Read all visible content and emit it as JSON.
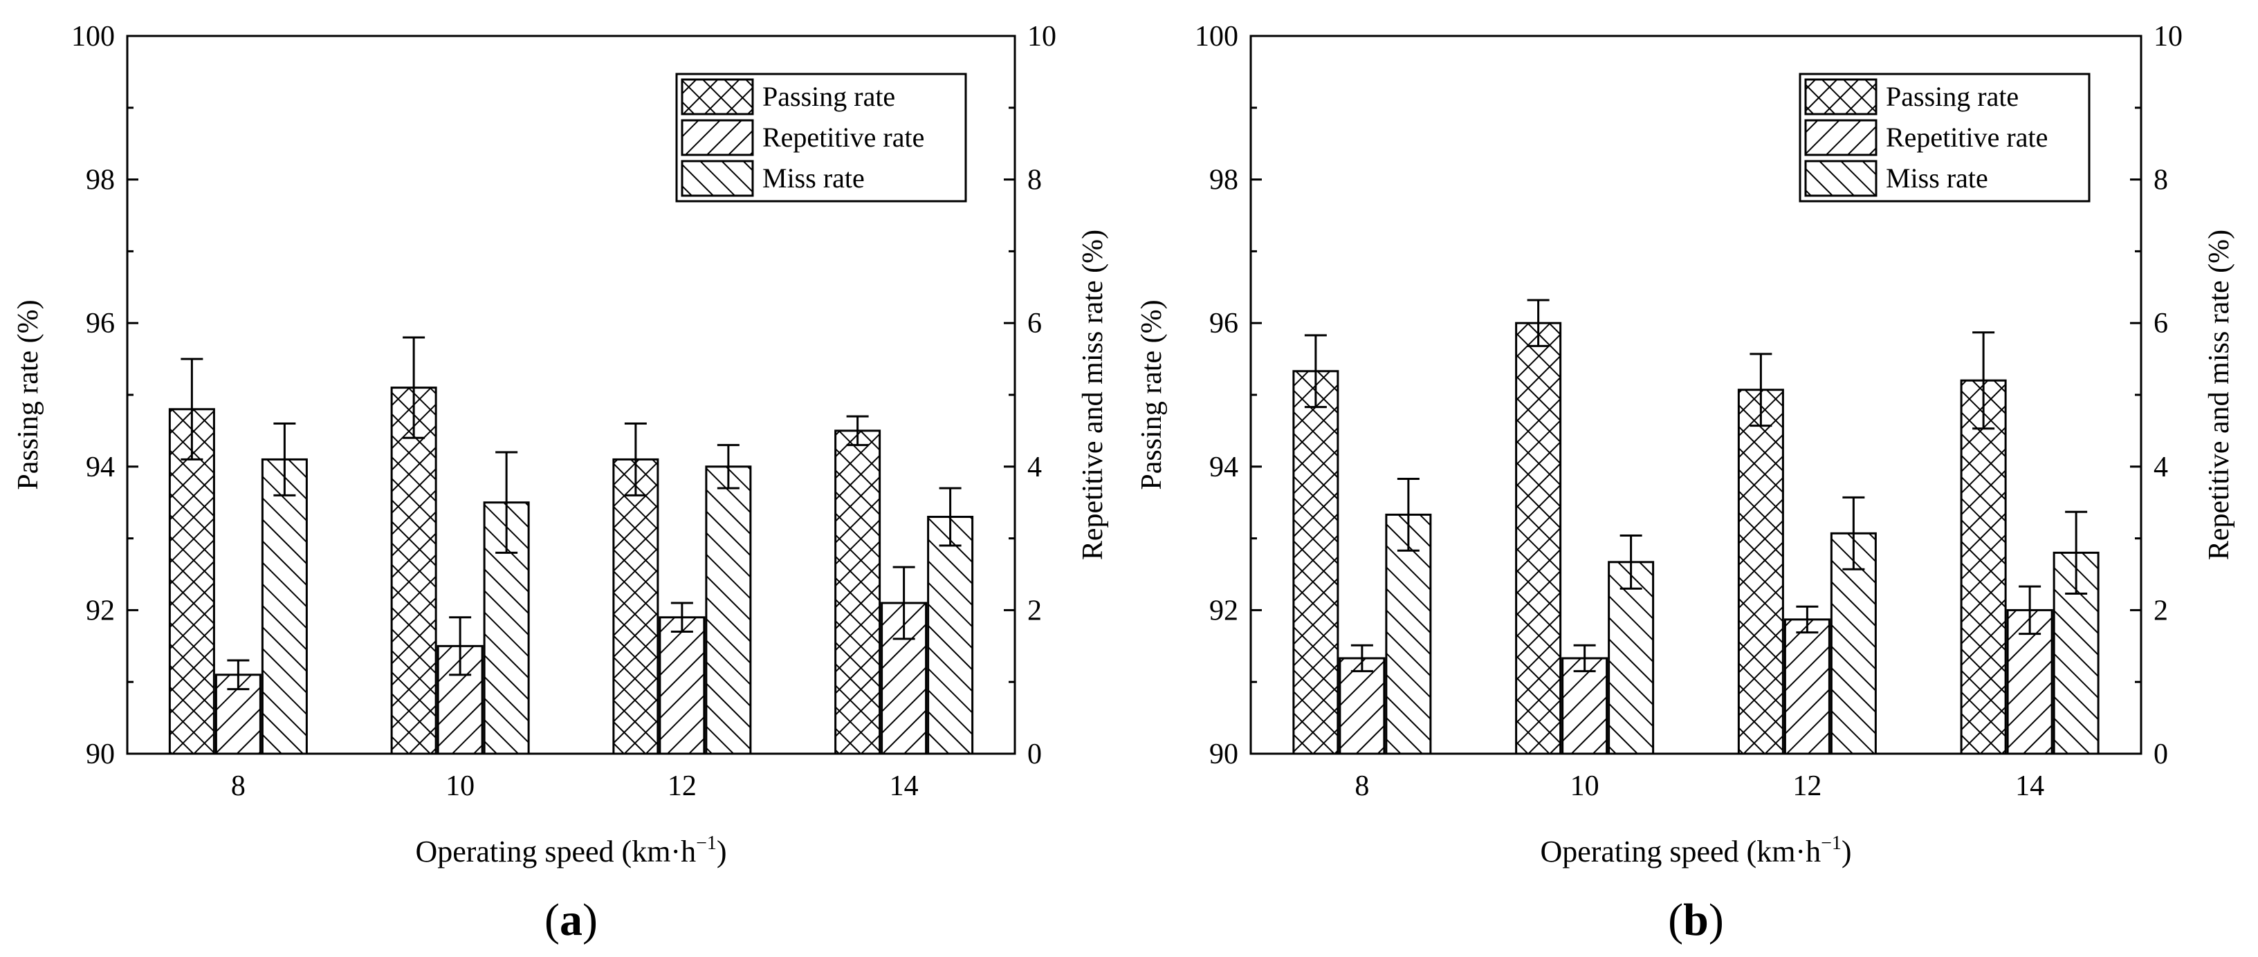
{
  "chart_data": [
    {
      "type": "bar",
      "panel_label": "a",
      "categories": [
        "8",
        "10",
        "12",
        "14"
      ],
      "xlabel": "Operating speed (km·h",
      "xlabel_sup": "−1",
      "xlabel_tail": ")",
      "ylabel_left": "Passing rate (%)",
      "ylabel_right": "Repetitive and miss rate (%)",
      "ylim_left": [
        90,
        100
      ],
      "ylim_right": [
        0,
        10
      ],
      "yticks_left": [
        "90",
        "92",
        "94",
        "96",
        "98",
        "100"
      ],
      "yticks_right": [
        "0",
        "2",
        "4",
        "6",
        "8",
        "10"
      ],
      "legend_position": "top-right",
      "series": [
        {
          "name": "Passing rate",
          "axis": "left",
          "pattern": "crosshatch",
          "values": [
            94.8,
            95.1,
            94.1,
            94.5
          ],
          "errors": [
            0.7,
            0.7,
            0.5,
            0.2
          ]
        },
        {
          "name": "Repetitive rate",
          "axis": "right",
          "pattern": "forward-diagonal",
          "values": [
            1.1,
            1.5,
            1.9,
            2.1
          ],
          "errors": [
            0.2,
            0.4,
            0.2,
            0.5
          ]
        },
        {
          "name": "Miss rate",
          "axis": "right",
          "pattern": "back-diagonal",
          "values": [
            4.1,
            3.5,
            4.0,
            3.3
          ],
          "errors": [
            0.5,
            0.7,
            0.3,
            0.4
          ]
        }
      ]
    },
    {
      "type": "bar",
      "panel_label": "b",
      "categories": [
        "8",
        "10",
        "12",
        "14"
      ],
      "xlabel": "Operating speed (km·h",
      "xlabel_sup": "−1",
      "xlabel_tail": ")",
      "ylabel_left": "Passing rate (%)",
      "ylabel_right": "Repetitive and miss rate (%)",
      "ylim_left": [
        90,
        100
      ],
      "ylim_right": [
        0,
        10
      ],
      "yticks_left": [
        "90",
        "92",
        "94",
        "96",
        "98",
        "100"
      ],
      "yticks_right": [
        "0",
        "2",
        "4",
        "6",
        "8",
        "10"
      ],
      "legend_position": "top-right",
      "series": [
        {
          "name": "Passing rate",
          "axis": "left",
          "pattern": "crosshatch",
          "values": [
            95.33,
            96.0,
            95.07,
            95.2
          ],
          "errors": [
            0.5,
            0.32,
            0.5,
            0.67
          ]
        },
        {
          "name": "Repetitive rate",
          "axis": "right",
          "pattern": "forward-diagonal",
          "values": [
            1.33,
            1.33,
            1.87,
            2.0
          ],
          "errors": [
            0.18,
            0.18,
            0.18,
            0.33
          ]
        },
        {
          "name": "Miss rate",
          "axis": "right",
          "pattern": "back-diagonal",
          "values": [
            3.33,
            2.67,
            3.07,
            2.8
          ],
          "errors": [
            0.5,
            0.37,
            0.5,
            0.57
          ]
        }
      ]
    }
  ]
}
